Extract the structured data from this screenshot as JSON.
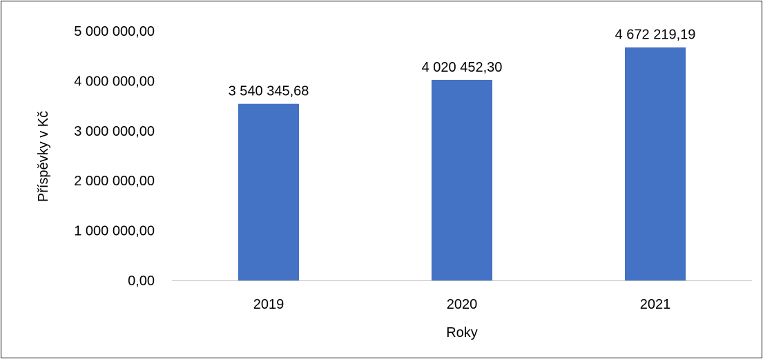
{
  "chart_data": {
    "type": "bar",
    "categories": [
      "2019",
      "2020",
      "2021"
    ],
    "values": [
      3540345.68,
      4020452.3,
      4672219.19
    ],
    "data_labels": [
      "3 540 345,68",
      "4 020 452,30",
      "4 672 219,19"
    ],
    "xlabel": "Roky",
    "ylabel": "Příspěvky v Kč",
    "ylim": [
      0,
      5000000
    ],
    "yticks": [
      0,
      1000000,
      2000000,
      3000000,
      4000000,
      5000000
    ],
    "ytick_labels": [
      "0,00",
      "1 000 000,00",
      "2 000 000,00",
      "3 000 000,00",
      "4 000 000,00",
      "5 000 000,00"
    ],
    "grid": false,
    "legend": "none",
    "bar_color": "#4472C4",
    "axis_color": "#BFBFBF"
  }
}
